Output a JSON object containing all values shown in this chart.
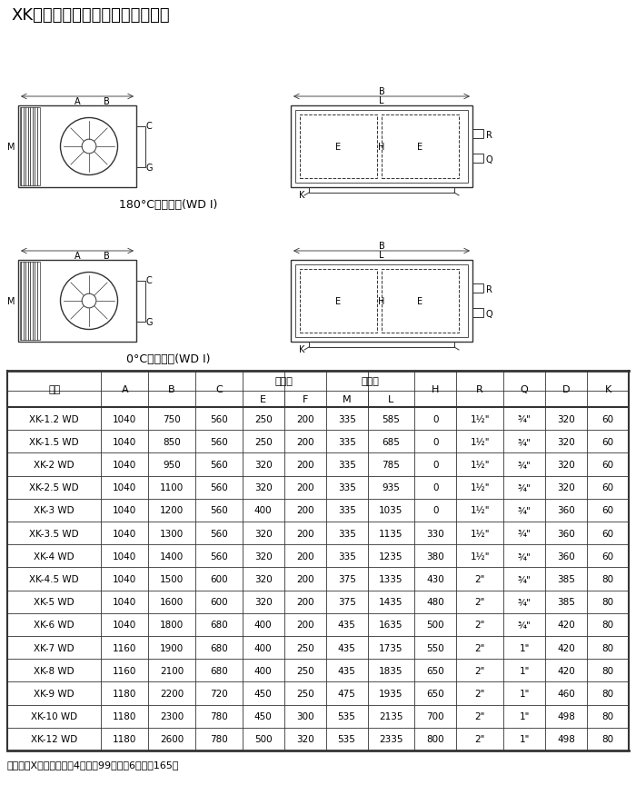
{
  "title": "XK型超薄型卧式吊顶空调机组尺寸",
  "caption1": "180°C水平出风(WD I)",
  "caption2": "0°C水平出风(WD I)",
  "note": "注：图中X：表冷器排深4排时为99；排深6排时为165。",
  "col_headers_top": [
    "型号",
    "A",
    "B",
    "C",
    "出风口",
    "",
    "回风口",
    "",
    "H",
    "R",
    "Q",
    "D",
    "K"
  ],
  "col_headers_sub": [
    "",
    "",
    "",
    "",
    "E",
    "F",
    "M",
    "L",
    "",
    "",
    "",
    "",
    ""
  ],
  "col_spans": {
    "出风口": [
      4,
      5
    ],
    "回风口": [
      6,
      7
    ]
  },
  "columns": [
    "型号",
    "A",
    "B",
    "C",
    "E",
    "F",
    "M",
    "L",
    "H",
    "R",
    "Q",
    "D",
    "K"
  ],
  "rows": [
    [
      "XK-1.2 WD",
      "1040",
      "750",
      "560",
      "250",
      "200",
      "335",
      "585",
      "0",
      "1½\"",
      "¾\"",
      "320",
      "60"
    ],
    [
      "XK-1.5 WD",
      "1040",
      "850",
      "560",
      "250",
      "200",
      "335",
      "685",
      "0",
      "1½\"",
      "¾\"",
      "320",
      "60"
    ],
    [
      "XK-2 WD",
      "1040",
      "950",
      "560",
      "320",
      "200",
      "335",
      "785",
      "0",
      "1½\"",
      "¾\"",
      "320",
      "60"
    ],
    [
      "XK-2.5 WD",
      "1040",
      "1100",
      "560",
      "320",
      "200",
      "335",
      "935",
      "0",
      "1½\"",
      "¾\"",
      "320",
      "60"
    ],
    [
      "XK-3 WD",
      "1040",
      "1200",
      "560",
      "400",
      "200",
      "335",
      "1035",
      "0",
      "1½\"",
      "¾\"",
      "360",
      "60"
    ],
    [
      "XK-3.5 WD",
      "1040",
      "1300",
      "560",
      "320",
      "200",
      "335",
      "1135",
      "330",
      "1½\"",
      "¾\"",
      "360",
      "60"
    ],
    [
      "XK-4 WD",
      "1040",
      "1400",
      "560",
      "320",
      "200",
      "335",
      "1235",
      "380",
      "1½\"",
      "¾\"",
      "360",
      "60"
    ],
    [
      "XK-4.5 WD",
      "1040",
      "1500",
      "600",
      "320",
      "200",
      "375",
      "1335",
      "430",
      "2\"",
      "¾\"",
      "385",
      "80"
    ],
    [
      "XK-5 WD",
      "1040",
      "1600",
      "600",
      "320",
      "200",
      "375",
      "1435",
      "480",
      "2\"",
      "¾\"",
      "385",
      "80"
    ],
    [
      "XK-6 WD",
      "1040",
      "1800",
      "680",
      "400",
      "200",
      "435",
      "1635",
      "500",
      "2\"",
      "¾\"",
      "420",
      "80"
    ],
    [
      "XK-7 WD",
      "1160",
      "1900",
      "680",
      "400",
      "250",
      "435",
      "1735",
      "550",
      "2\"",
      "1\"",
      "420",
      "80"
    ],
    [
      "XK-8 WD",
      "1160",
      "2100",
      "680",
      "400",
      "250",
      "435",
      "1835",
      "650",
      "2\"",
      "1\"",
      "420",
      "80"
    ],
    [
      "XK-9 WD",
      "1180",
      "2200",
      "720",
      "450",
      "250",
      "475",
      "1935",
      "650",
      "2\"",
      "1\"",
      "460",
      "80"
    ],
    [
      "XK-10 WD",
      "1180",
      "2300",
      "780",
      "450",
      "300",
      "535",
      "2135",
      "700",
      "2\"",
      "1\"",
      "498",
      "80"
    ],
    [
      "XK-12 WD",
      "1180",
      "2600",
      "780",
      "500",
      "320",
      "535",
      "2335",
      "800",
      "2\"",
      "1\"",
      "498",
      "80"
    ]
  ],
  "bg_color": "#ffffff",
  "table_line_color": "#333333",
  "header_bg": "#ffffff",
  "text_color": "#000000"
}
